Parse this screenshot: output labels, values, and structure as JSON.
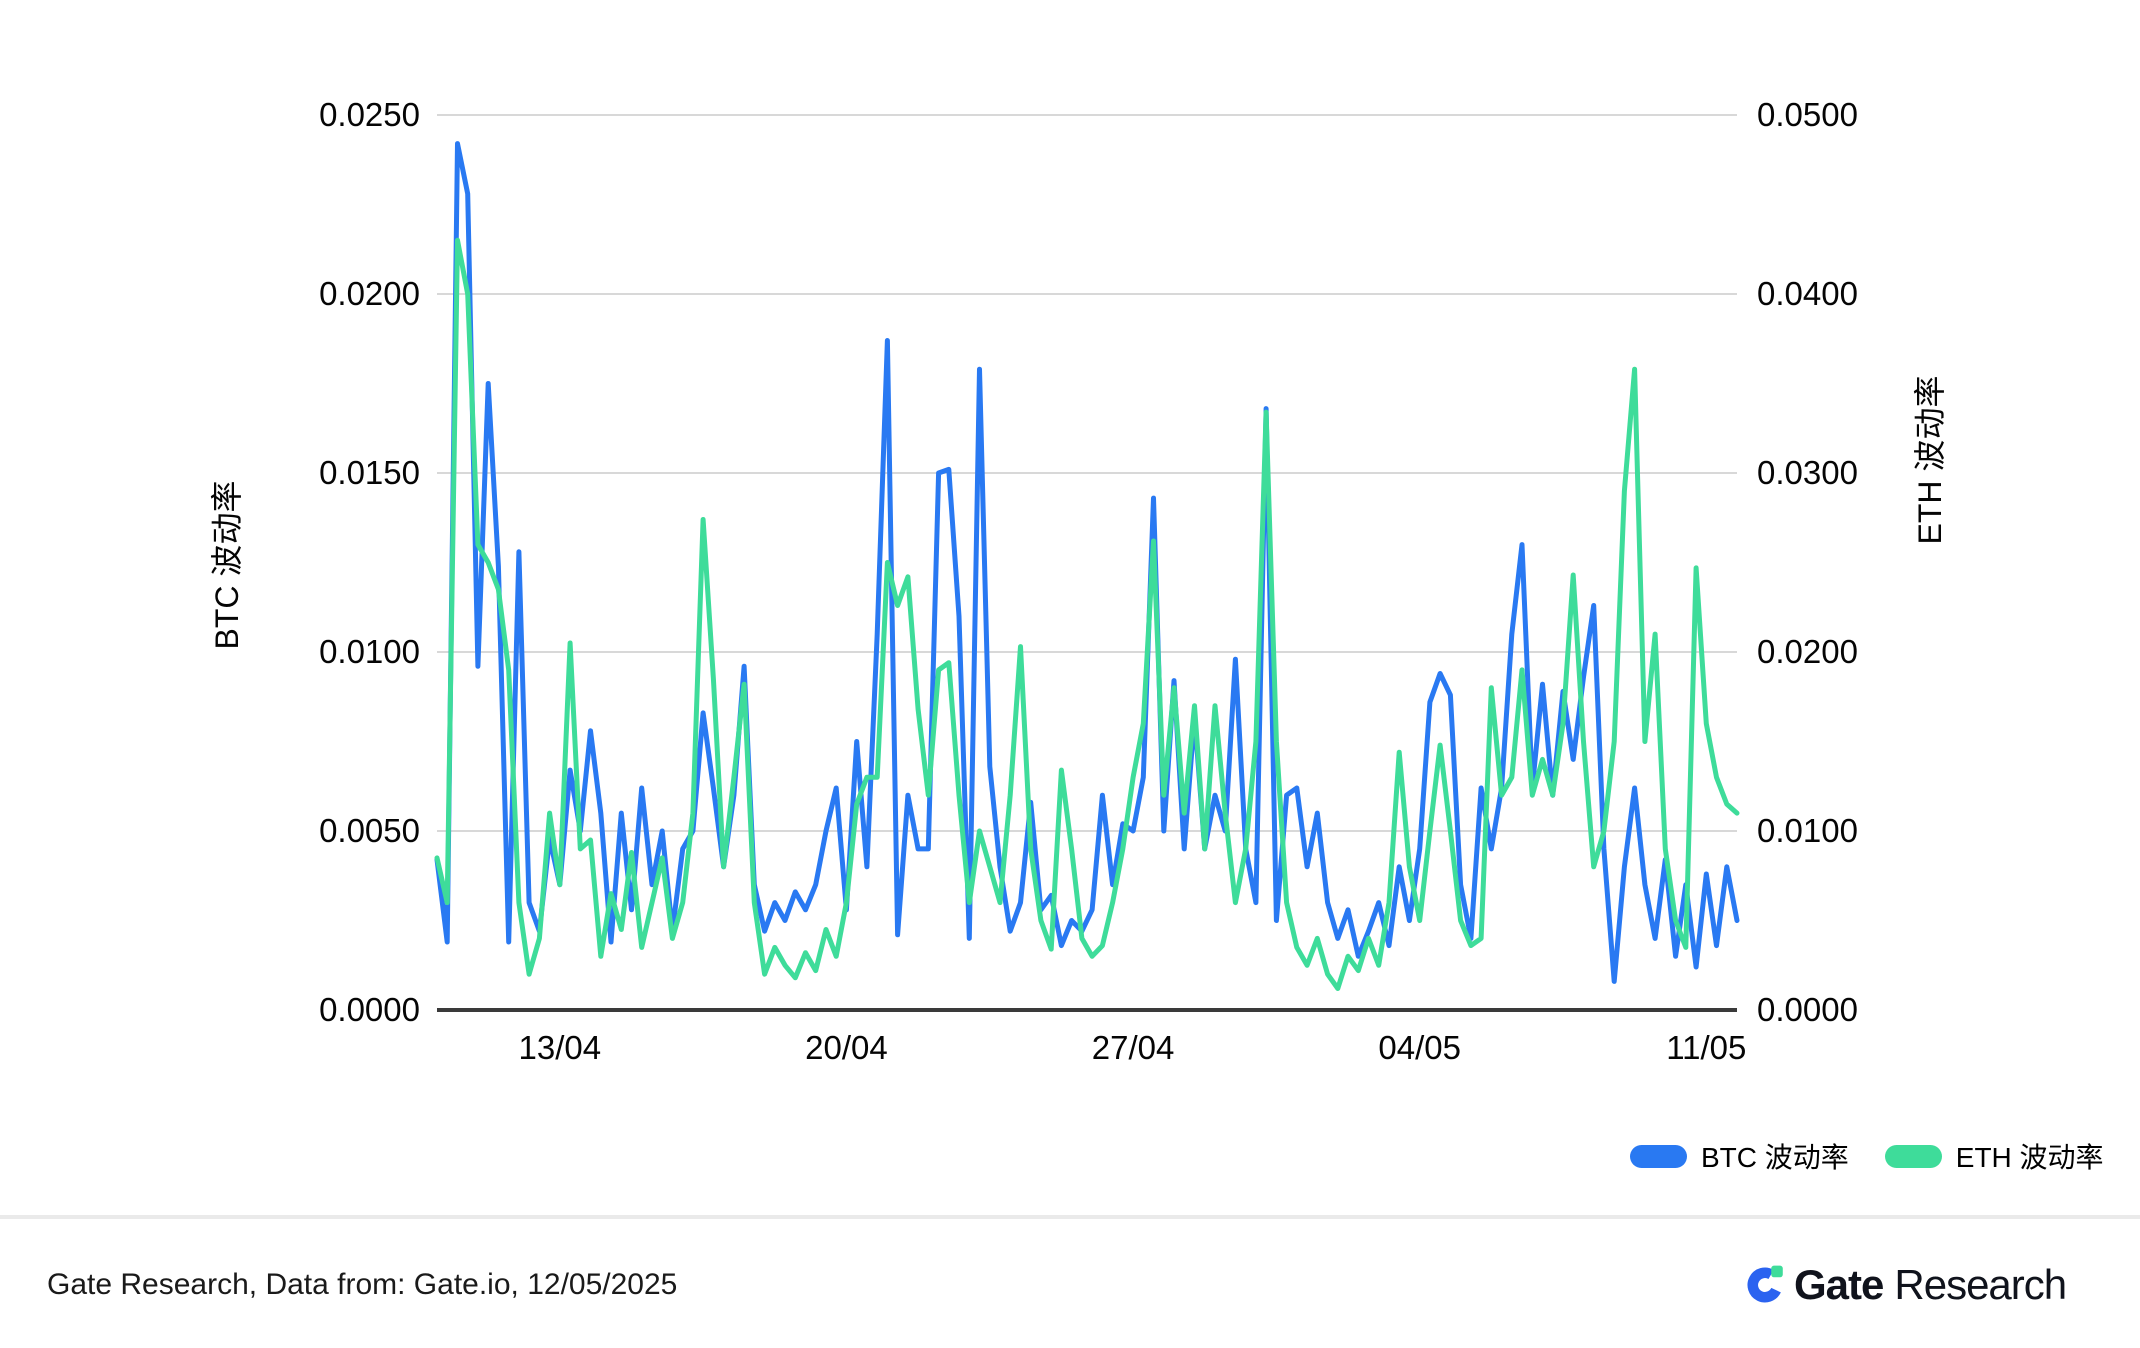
{
  "page": {
    "background": "#ffffff"
  },
  "axes": {
    "left": {
      "title": "BTC 波动率",
      "tick_labels": [
        "0.0250",
        "0.0200",
        "0.0150",
        "0.0100",
        "0.0050",
        "0.0000"
      ],
      "max": 0.025
    },
    "right": {
      "title": "ETH 波动率",
      "tick_labels": [
        "0.0500",
        "0.0400",
        "0.0300",
        "0.0200",
        "0.0100",
        "0.0000"
      ],
      "max": 0.05
    },
    "x": {
      "tick_labels": [
        "13/04",
        "20/04",
        "27/04",
        "04/05",
        "11/05"
      ],
      "tick_days": [
        3,
        10,
        17,
        24,
        31
      ]
    }
  },
  "colors": {
    "btc": "#2979f2",
    "eth": "#3edc9a",
    "grid": "#d8d8d8",
    "axis_line": "#3a3a3a"
  },
  "legend": [
    {
      "label": "BTC 波动率",
      "color": "#2979f2"
    },
    {
      "label": "ETH 波动率",
      "color": "#3edc9a"
    }
  ],
  "footer": {
    "source_note": "Gate Research, Data from: Gate.io, 12/05/2025",
    "logo_bold": "Gate",
    "logo_regular": "Research"
  },
  "chart_data": {
    "type": "line",
    "title": "",
    "x_unit": "days from 10/04, 6-hour interval",
    "x_step_days": 0.25,
    "x_total_days": 31.75,
    "grid": true,
    "legend_position": "bottom-right",
    "series": [
      {
        "name": "BTC 波动率",
        "axis": "left",
        "color": "#2979f2",
        "ylim": [
          0,
          0.025
        ],
        "values": [
          0.0042,
          0.0019,
          0.0242,
          0.0228,
          0.0096,
          0.0175,
          0.0124,
          0.0019,
          0.0128,
          0.003,
          0.0022,
          0.0048,
          0.0035,
          0.0067,
          0.005,
          0.0078,
          0.0055,
          0.0019,
          0.0055,
          0.0028,
          0.0062,
          0.0035,
          0.005,
          0.0022,
          0.0045,
          0.005,
          0.0083,
          0.0062,
          0.004,
          0.006,
          0.0096,
          0.0035,
          0.0022,
          0.003,
          0.0025,
          0.0033,
          0.0028,
          0.0035,
          0.005,
          0.0062,
          0.0028,
          0.0075,
          0.004,
          0.0105,
          0.0187,
          0.0021,
          0.006,
          0.0045,
          0.0045,
          0.015,
          0.0151,
          0.011,
          0.002,
          0.0179,
          0.0068,
          0.004,
          0.0022,
          0.003,
          0.0058,
          0.0028,
          0.0032,
          0.0018,
          0.0025,
          0.0022,
          0.0028,
          0.006,
          0.0035,
          0.0052,
          0.005,
          0.0065,
          0.0143,
          0.005,
          0.0092,
          0.0045,
          0.0082,
          0.0045,
          0.006,
          0.005,
          0.0098,
          0.0045,
          0.003,
          0.0168,
          0.0025,
          0.006,
          0.0062,
          0.004,
          0.0055,
          0.003,
          0.002,
          0.0028,
          0.0015,
          0.0022,
          0.003,
          0.0018,
          0.004,
          0.0025,
          0.0045,
          0.0086,
          0.0094,
          0.0088,
          0.0035,
          0.002,
          0.0062,
          0.0045,
          0.0062,
          0.0105,
          0.013,
          0.0062,
          0.0091,
          0.006,
          0.0089,
          0.007,
          0.0093,
          0.0113,
          0.0045,
          0.0008,
          0.004,
          0.0062,
          0.0035,
          0.002,
          0.0042,
          0.0015,
          0.0035,
          0.0012,
          0.0038,
          0.0018,
          0.004,
          0.0025
        ]
      },
      {
        "name": "ETH 波动率",
        "axis": "right",
        "color": "#3edc9a",
        "ylim": [
          0,
          0.05
        ],
        "values": [
          0.0085,
          0.006,
          0.043,
          0.04,
          0.026,
          0.025,
          0.0235,
          0.019,
          0.006,
          0.002,
          0.004,
          0.011,
          0.007,
          0.0205,
          0.009,
          0.0095,
          0.003,
          0.0065,
          0.0045,
          0.0088,
          0.0035,
          0.006,
          0.0085,
          0.004,
          0.006,
          0.011,
          0.0274,
          0.0185,
          0.008,
          0.013,
          0.0182,
          0.006,
          0.002,
          0.0035,
          0.0025,
          0.0018,
          0.0032,
          0.0022,
          0.0045,
          0.003,
          0.006,
          0.0115,
          0.013,
          0.013,
          0.025,
          0.0226,
          0.0242,
          0.0168,
          0.012,
          0.019,
          0.0194,
          0.012,
          0.006,
          0.01,
          0.008,
          0.006,
          0.012,
          0.0203,
          0.009,
          0.005,
          0.0034,
          0.0134,
          0.009,
          0.004,
          0.003,
          0.0036,
          0.006,
          0.009,
          0.013,
          0.016,
          0.0262,
          0.012,
          0.018,
          0.011,
          0.017,
          0.009,
          0.017,
          0.011,
          0.006,
          0.009,
          0.015,
          0.0334,
          0.015,
          0.006,
          0.0035,
          0.0025,
          0.004,
          0.002,
          0.0012,
          0.003,
          0.0022,
          0.004,
          0.0025,
          0.006,
          0.0144,
          0.008,
          0.005,
          0.01,
          0.0148,
          0.01,
          0.005,
          0.0036,
          0.004,
          0.018,
          0.012,
          0.013,
          0.019,
          0.012,
          0.014,
          0.012,
          0.016,
          0.0243,
          0.015,
          0.008,
          0.01,
          0.015,
          0.029,
          0.0358,
          0.015,
          0.021,
          0.009,
          0.005,
          0.0035,
          0.0247,
          0.016,
          0.013,
          0.0115,
          0.011
        ]
      }
    ]
  }
}
